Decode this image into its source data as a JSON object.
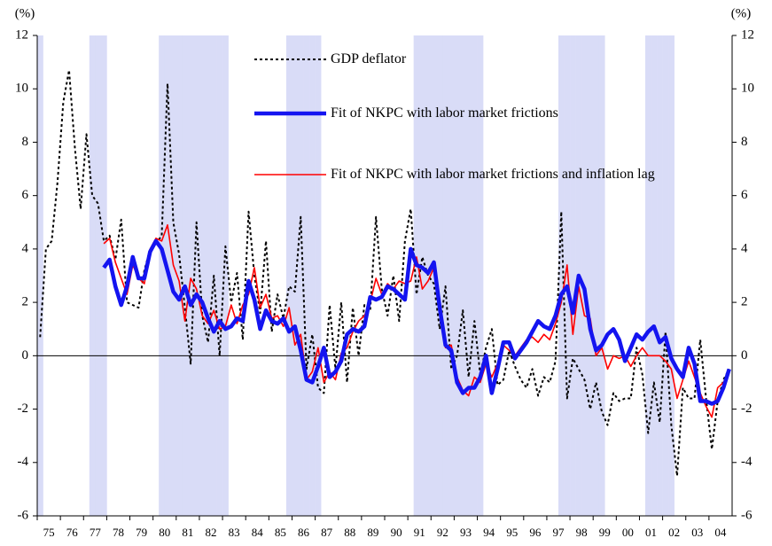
{
  "chart_data": {
    "type": "line",
    "ylabel": "(%)",
    "y2label": "(%)",
    "ylim": [
      -6,
      12
    ],
    "yticks": [
      -6,
      -4,
      -2,
      0,
      2,
      4,
      6,
      8,
      10,
      12
    ],
    "y2lim": [
      -6,
      12
    ],
    "y2ticks": [
      -6,
      -4,
      -2,
      0,
      2,
      4,
      6,
      8,
      10,
      12
    ],
    "categories": [
      "75",
      null,
      null,
      null,
      "76",
      null,
      null,
      null,
      "77",
      null,
      null,
      null,
      "78",
      null,
      null,
      null,
      "79",
      null,
      null,
      null,
      "80",
      null,
      null,
      null,
      "81",
      null,
      null,
      null,
      "82",
      null,
      null,
      null,
      "83",
      null,
      null,
      null,
      "84",
      null,
      null,
      null,
      "85",
      null,
      null,
      null,
      "86",
      null,
      null,
      null,
      "87",
      null,
      null,
      null,
      "88",
      null,
      null,
      null,
      "89",
      null,
      null,
      null,
      "90",
      null,
      null,
      null,
      "91",
      null,
      null,
      null,
      "92",
      null,
      null,
      null,
      "93",
      null,
      null,
      null,
      "94",
      null,
      null,
      null,
      "95",
      null,
      null,
      null,
      "96",
      null,
      null,
      null,
      "97",
      null,
      null,
      null,
      "98",
      null,
      null,
      null,
      "99",
      null,
      null,
      null,
      "00",
      null,
      null,
      null,
      "01",
      null,
      null,
      null,
      "02",
      null,
      null,
      null,
      "03",
      null,
      null,
      null,
      "04",
      null,
      null,
      null
    ],
    "shaded": [
      true,
      false,
      false,
      false,
      false,
      false,
      false,
      false,
      false,
      true,
      true,
      true,
      false,
      false,
      false,
      false,
      false,
      false,
      false,
      false,
      false,
      true,
      true,
      true,
      true,
      true,
      true,
      true,
      true,
      true,
      true,
      true,
      true,
      false,
      false,
      false,
      false,
      false,
      false,
      false,
      false,
      false,
      false,
      true,
      true,
      true,
      true,
      true,
      true,
      false,
      false,
      false,
      false,
      false,
      false,
      false,
      false,
      false,
      false,
      false,
      false,
      false,
      false,
      false,
      false,
      true,
      true,
      true,
      true,
      true,
      true,
      true,
      true,
      true,
      true,
      true,
      true,
      false,
      false,
      false,
      false,
      false,
      false,
      false,
      false,
      false,
      false,
      false,
      false,
      false,
      true,
      true,
      true,
      true,
      true,
      true,
      true,
      true,
      false,
      false,
      false,
      false,
      false,
      false,
      false,
      true,
      true,
      true,
      true,
      true,
      false,
      false,
      false,
      false,
      false,
      false,
      false,
      false,
      false,
      false
    ],
    "shade_color": "#d9dcf7",
    "series": [
      {
        "name": "GDP deflator",
        "color": "#000000",
        "style": "dotted",
        "values": [
          0.7,
          4.0,
          4.3,
          6.5,
          9.5,
          10.7,
          7.8,
          5.5,
          8.3,
          6.0,
          5.7,
          4.3,
          4.5,
          3.6,
          5.1,
          2.0,
          1.9,
          1.8,
          3.2,
          4.0,
          4.2,
          4.5,
          10.2,
          5.0,
          3.8,
          1.8,
          -0.3,
          5.0,
          1.5,
          0.5,
          3.0,
          0.0,
          4.1,
          2.0,
          3.1,
          0.6,
          5.4,
          3.0,
          1.6,
          4.3,
          0.9,
          2.3,
          1.4,
          2.6,
          2.4,
          5.2,
          -0.5,
          0.8,
          -1.2,
          -1.4,
          1.9,
          -0.5,
          2.0,
          -1.0,
          1.8,
          0.0,
          1.9,
          1.7,
          5.2,
          2.5,
          1.5,
          3.0,
          1.3,
          4.3,
          5.5,
          2.3,
          3.7,
          3.0,
          2.7,
          1.0,
          2.6,
          -0.5,
          0.0,
          1.7,
          -0.8,
          1.3,
          -0.7,
          0.3,
          1.0,
          -1.1,
          -0.9,
          0.2,
          -0.4,
          -0.9,
          -1.2,
          -0.5,
          -1.5,
          -0.8,
          -1.0,
          -0.2,
          5.4,
          -1.6,
          -0.1,
          -0.5,
          -0.9,
          -2.0,
          -1.0,
          -2.1,
          -2.6,
          -1.4,
          -1.7,
          -1.6,
          -1.6,
          0.3,
          -0.7,
          -2.9,
          -1.0,
          -2.5,
          0.9,
          -2.6,
          -4.5,
          -1.2,
          -1.6,
          -1.6,
          0.6,
          -1.6,
          -3.5,
          -1.7,
          -0.9,
          -0.5
        ]
      },
      {
        "name": "Fit of NKPC with labor market frictions",
        "color": "#1414f0",
        "style": "thick",
        "values": [
          null,
          null,
          null,
          null,
          null,
          null,
          null,
          null,
          null,
          null,
          null,
          3.3,
          3.6,
          2.6,
          1.9,
          2.6,
          3.7,
          2.9,
          2.9,
          3.9,
          4.3,
          4.0,
          3.2,
          2.4,
          2.1,
          2.6,
          1.9,
          2.3,
          2.0,
          1.4,
          0.9,
          1.3,
          1.0,
          1.1,
          1.4,
          1.3,
          2.8,
          2.1,
          1.0,
          1.7,
          1.3,
          1.2,
          1.4,
          0.9,
          1.1,
          0.2,
          -0.9,
          -1.0,
          -0.4,
          0.3,
          -0.8,
          -0.6,
          -0.2,
          0.8,
          1.0,
          0.9,
          1.1,
          2.2,
          2.1,
          2.2,
          2.6,
          2.5,
          2.3,
          2.1,
          4.0,
          3.4,
          3.3,
          3.1,
          3.5,
          1.8,
          0.4,
          0.2,
          -1.0,
          -1.4,
          -1.2,
          -1.2,
          -0.8,
          0.0,
          -1.4,
          -0.5,
          0.5,
          0.5,
          -0.1,
          0.2,
          0.5,
          0.9,
          1.3,
          1.1,
          1.0,
          1.5,
          2.3,
          2.6,
          1.6,
          3.0,
          2.5,
          1.0,
          0.2,
          0.4,
          0.8,
          1.0,
          0.6,
          -0.2,
          0.3,
          0.8,
          0.6,
          0.9,
          1.1,
          0.5,
          0.7,
          -0.1,
          -0.5,
          -0.8,
          0.3,
          -0.3,
          -1.7,
          -1.7,
          -1.8,
          -1.7,
          -1.2,
          -0.5
        ]
      },
      {
        "name": "Fit of NKPC with labor market frictions and inflation lag",
        "color": "#ff0000",
        "style": "thin",
        "values": [
          null,
          null,
          null,
          null,
          null,
          null,
          null,
          null,
          null,
          null,
          null,
          4.2,
          4.4,
          3.5,
          2.9,
          2.3,
          3.4,
          2.9,
          2.7,
          4.0,
          4.4,
          4.3,
          4.9,
          3.4,
          2.8,
          1.3,
          2.9,
          2.5,
          1.5,
          1.2,
          1.7,
          1.0,
          1.1,
          1.9,
          1.2,
          1.9,
          2.3,
          3.3,
          1.8,
          2.3,
          1.4,
          1.5,
          1.1,
          1.8,
          0.4,
          0.8,
          -0.9,
          -0.6,
          0.3,
          -1.0,
          -0.6,
          -0.9,
          0.1,
          0.3,
          0.9,
          1.3,
          1.5,
          2.0,
          2.9,
          2.3,
          2.7,
          2.5,
          2.8,
          2.7,
          2.8,
          3.7,
          2.5,
          2.8,
          3.3,
          1.6,
          0.3,
          0.4,
          -0.8,
          -1.3,
          -1.5,
          -0.8,
          -1.0,
          -0.3,
          -0.8,
          -0.3,
          0.4,
          0.2,
          0.0,
          0.3,
          0.6,
          0.7,
          0.5,
          0.8,
          0.6,
          1.2,
          2.0,
          3.4,
          0.8,
          2.6,
          1.5,
          1.4,
          0.0,
          0.3,
          -0.5,
          0.0,
          -0.1,
          0.0,
          -0.4,
          0.0,
          0.3,
          0.0,
          0.0,
          0.0,
          -0.2,
          -0.5,
          -1.6,
          -0.9,
          -0.2,
          -0.8,
          -1.4,
          -1.9,
          -2.3,
          -1.2,
          -1.0,
          -0.6
        ]
      }
    ]
  }
}
